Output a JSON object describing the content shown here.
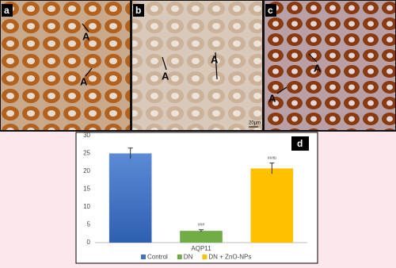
{
  "panels": [
    {
      "label": "a",
      "arrow_labels": [
        "A",
        "A"
      ]
    },
    {
      "label": "b",
      "arrow_labels": [
        "A",
        "A"
      ],
      "scale_bar": "20µm"
    },
    {
      "label": "c",
      "arrow_labels": [
        "A",
        "A"
      ]
    }
  ],
  "chart_data": {
    "type": "bar",
    "panel_label": "d",
    "categories": [
      "AQP11"
    ],
    "series": [
      {
        "name": "Control",
        "color": "#4472c4",
        "values": [
          25
        ],
        "errors": [
          1.5
        ]
      },
      {
        "name": "DN",
        "color": "#70ad47",
        "values": [
          3.3
        ],
        "errors": [
          0.3
        ],
        "annotation": "###"
      },
      {
        "name": "DN + ZnO-NPs",
        "color": "#ffc000",
        "values": [
          20.8
        ],
        "errors": [
          1.5
        ],
        "annotation": "###b"
      }
    ],
    "ylim": [
      0,
      30
    ],
    "yticks": [
      0,
      5,
      10,
      15,
      20,
      25,
      30
    ],
    "grid": false,
    "legend": "bottom"
  }
}
